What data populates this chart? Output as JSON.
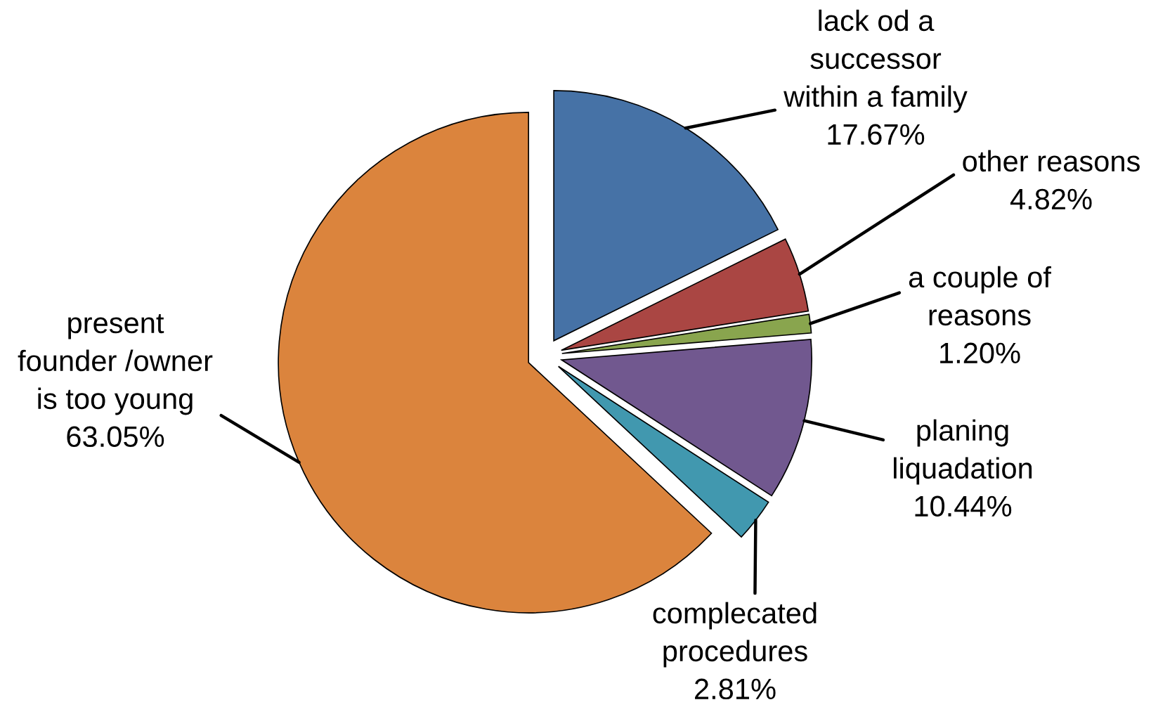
{
  "chart_data": {
    "type": "pie",
    "categories": [
      "lack od a\nsuccessor\nwithin a family",
      "other reasons",
      "a couple of\nreasons",
      "planing\nliquadation",
      "complecated\nprocedures",
      "present\nfounder /owner\nis too young"
    ],
    "values": [
      17.67,
      4.82,
      1.2,
      10.44,
      2.81,
      63.05
    ],
    "value_labels": [
      "17.67%",
      "4.82%",
      "1.20%",
      "10.44%",
      "2.81%",
      "63.05%"
    ],
    "colors": [
      "#4672a6",
      "#aa4643",
      "#89a54e",
      "#71588f",
      "#4198af",
      "#db843d"
    ]
  }
}
